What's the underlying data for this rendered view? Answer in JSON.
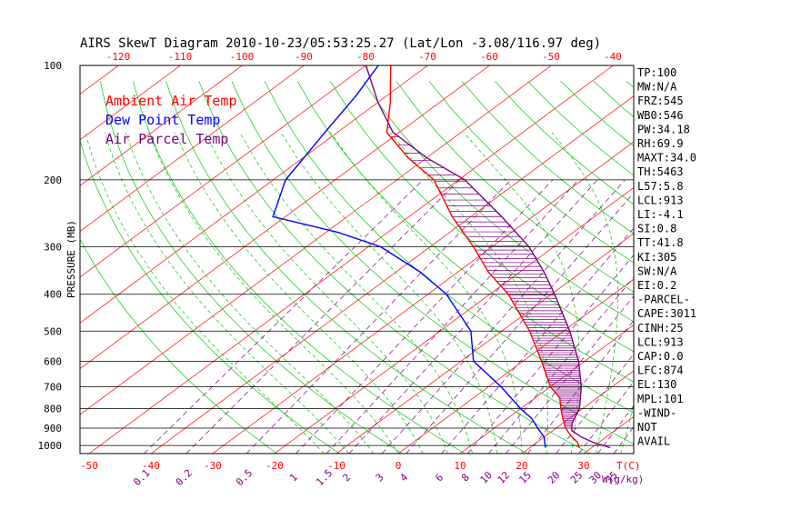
{
  "window": {
    "title": "AIRS SkewT Diagram 2010-10-23/05:53:25.27 (Lat/Lon -3.08/116.97 deg)"
  },
  "legend": {
    "ambient": "Ambient Air Temp",
    "dewpoint": "Dew Point Temp",
    "parcel": "Air Parcel Temp"
  },
  "indices": [
    "TP:100",
    "MW:N/A",
    "FRZ:545",
    "WB0:546",
    "PW:34.18",
    "RH:69.9",
    "MAXT:34.0",
    "TH:5463",
    "L57:5.8",
    "LCL:913",
    "LI:-4.1",
    "SI:0.8",
    "TT:41.8",
    "KI:305",
    "SW:N/A",
    "EI:0.2",
    "-PARCEL-",
    "CAPE:3011",
    "CINH:25",
    "LCL:913",
    "CAP:0.0",
    "LFC:874",
    "EL:130",
    "MPL:101",
    "-WIND-",
    "NOT",
    "AVAIL"
  ],
  "colors": {
    "ambient": "#ff0000",
    "dewpoint": "#0000ff",
    "parcel": "#800080",
    "isotherm": "#ff0000",
    "dry_adiabat": "#00cc00",
    "moist_adiabat": "#00cc00",
    "mixing_ratio": "#800080",
    "isobar": "#000000"
  },
  "chart_data": {
    "type": "skew-t",
    "title": "AIRS SkewT Diagram 2010-10-23/05:53:25.27 (Lat/Lon -3.08/116.97 deg)",
    "ylabel": "PRESSURE (MB)",
    "pressure_axis": {
      "scale": "log",
      "range": [
        1050,
        100
      ],
      "ticks": [
        "100",
        "200",
        "300",
        "400",
        "500",
        "600",
        "700",
        "800",
        "900",
        "1000"
      ]
    },
    "bottom_temp_ticks": [
      "-50",
      "-40",
      "-30",
      "-20",
      "-10",
      "0",
      "10",
      "20",
      "30"
    ],
    "bottom_temp_unit": "T(C)",
    "top_temp_ticks": [
      "-120",
      "-110",
      "-100",
      "-90",
      "-80",
      "-70",
      "-60",
      "-50",
      "-40"
    ],
    "mixing_ratio_ticks": [
      "0.1",
      "0.2",
      "0.5",
      "1",
      "1.5",
      "2",
      "3",
      "4",
      "6",
      "8",
      "10",
      "12",
      "15",
      "20",
      "25",
      "30",
      "35"
    ],
    "mixing_ratio_unit": "W(g/kg)",
    "series": [
      {
        "name": "Ambient Air Temp",
        "points": [
          [
            1013,
            28
          ],
          [
            980,
            26.5
          ],
          [
            950,
            24.5
          ],
          [
            900,
            21.5
          ],
          [
            850,
            19
          ],
          [
            800,
            16.5
          ],
          [
            750,
            14
          ],
          [
            700,
            10
          ],
          [
            600,
            3
          ],
          [
            500,
            -5.5
          ],
          [
            400,
            -17
          ],
          [
            350,
            -25
          ],
          [
            300,
            -33
          ],
          [
            250,
            -43
          ],
          [
            200,
            -54
          ],
          [
            175,
            -63
          ],
          [
            150,
            -72
          ],
          [
            125,
            -78
          ],
          [
            100,
            -86
          ]
        ]
      },
      {
        "name": "Dew Point Temp",
        "points": [
          [
            1013,
            22.5
          ],
          [
            950,
            20
          ],
          [
            900,
            17
          ],
          [
            850,
            14
          ],
          [
            800,
            10
          ],
          [
            700,
            2
          ],
          [
            600,
            -8
          ],
          [
            500,
            -15
          ],
          [
            400,
            -27
          ],
          [
            350,
            -36
          ],
          [
            300,
            -48
          ],
          [
            275,
            -58
          ],
          [
            250,
            -72
          ],
          [
            200,
            -78
          ],
          [
            150,
            -82
          ],
          [
            120,
            -85
          ],
          [
            100,
            -88
          ]
        ]
      },
      {
        "name": "Air Parcel Temp",
        "points": [
          [
            1013,
            33
          ],
          [
            980,
            29
          ],
          [
            950,
            26
          ],
          [
            913,
            23
          ],
          [
            874,
            21.5
          ],
          [
            800,
            19.5
          ],
          [
            700,
            15
          ],
          [
            600,
            9
          ],
          [
            500,
            1
          ],
          [
            400,
            -9.5
          ],
          [
            350,
            -16
          ],
          [
            300,
            -24
          ],
          [
            250,
            -35
          ],
          [
            200,
            -49
          ],
          [
            175,
            -60
          ],
          [
            150,
            -71
          ],
          [
            125,
            -80
          ],
          [
            100,
            -90
          ]
        ]
      }
    ]
  }
}
